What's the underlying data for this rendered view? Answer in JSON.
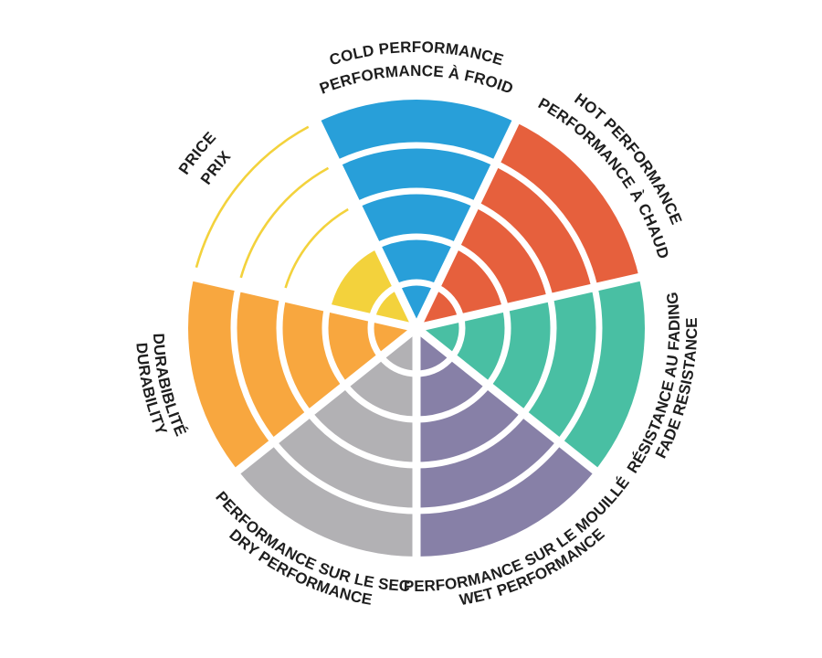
{
  "chart_data": {
    "type": "polar-wedge-rating",
    "title": "",
    "max_rings": 5,
    "legend_position": "labels-around-perimeter",
    "grid": "white ring separators inside filled wedges",
    "text_color": "#1E1E1E",
    "background_color": "#FFFFFF",
    "categories": [
      {
        "id": "cold-performance",
        "label_en": "COLD PERFORMANCE",
        "label_fr": "PERFORMANCE À FROID",
        "value": 5,
        "color": "#289FD9"
      },
      {
        "id": "hot-performance",
        "label_en": "HOT PERFORMANCE",
        "label_fr": "PERFORMANCE À CHAUD",
        "value": 5,
        "color": "#E6603D"
      },
      {
        "id": "fade-resistance",
        "label_en": "FADE RESISTANCE",
        "label_fr": "RÉSISTANCE AU FADING",
        "value": 5,
        "color": "#49BFA3"
      },
      {
        "id": "wet-performance",
        "label_en": "WET PERFORMANCE",
        "label_fr": "PERFORMANCE SUR LE MOUILLÉ",
        "value": 5,
        "color": "#8780A7"
      },
      {
        "id": "dry-performance",
        "label_en": "DRY PERFORMANCE",
        "label_fr": "PERFORMANCE SUR LE SEC",
        "value": 5,
        "color": "#B2B1B4"
      },
      {
        "id": "durability",
        "label_en": "DURABILITY",
        "label_fr": "DURABIBLITÉ",
        "value": 5,
        "color": "#F8A73F"
      },
      {
        "id": "price",
        "label_en": "PRICE",
        "label_fr": "PRIX",
        "value": 2,
        "color": "#F3D23C",
        "unfilled_style": "outline"
      }
    ]
  }
}
